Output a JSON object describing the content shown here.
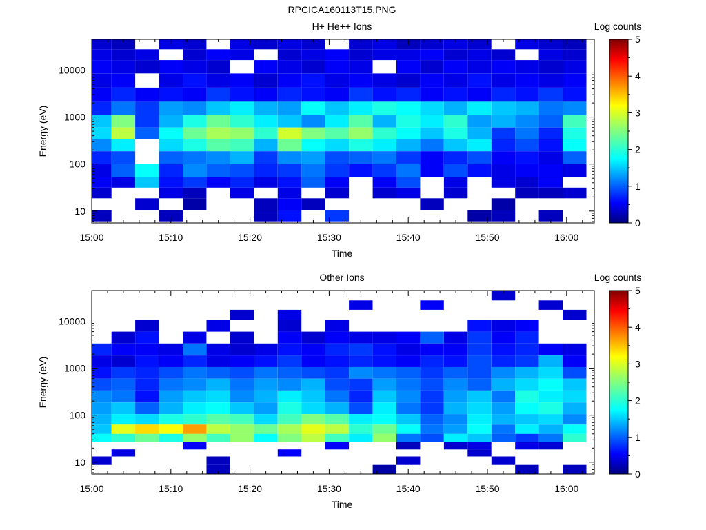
{
  "figure_title": "RPCICA160113T15.PNG",
  "chart_data": [
    {
      "type": "heatmap",
      "title": "H+ He++ Ions",
      "xlabel": "Time",
      "ylabel": "Energy (eV)",
      "x_tick_labels": [
        "15:00",
        "15:10",
        "15:20",
        "15:30",
        "15:40",
        "15:50",
        "16:00"
      ],
      "y_tick_labels": [
        "10",
        "100",
        "1000",
        "10000"
      ],
      "ylim": [
        5.6,
        45000
      ],
      "y_scale": "log",
      "colorbar": {
        "label": "Log counts",
        "ticks": [
          "0",
          "1",
          "2",
          "3",
          "4",
          "5"
        ],
        "range": [
          0,
          5
        ],
        "colormap": "jet"
      },
      "time_bins": [
        "15:01",
        "15:04",
        "15:07",
        "15:10",
        "15:13",
        "15:16",
        "15:19",
        "15:22",
        "15:25",
        "15:28",
        "15:31",
        "15:34",
        "15:37",
        "15:40",
        "15:43",
        "15:46",
        "15:49",
        "15:52",
        "15:55",
        "15:58",
        "16:01"
      ],
      "energy_rows": [
        {
          "energy_eV": 35000,
          "values": [
            0.4,
            0.3,
            null,
            0.5,
            0.4,
            null,
            0.5,
            0.4,
            0.5,
            0.4,
            null,
            0.4,
            0.5,
            0.3,
            0.4,
            0.5,
            0.4,
            null,
            0.5,
            0.4,
            0.3
          ]
        },
        {
          "energy_eV": 22000,
          "values": [
            0.5,
            0.4,
            0.5,
            null,
            0.4,
            0.6,
            0.5,
            null,
            0.4,
            0.5,
            0.6,
            0.4,
            0.5,
            0.5,
            0.6,
            0.4,
            0.5,
            0.4,
            null,
            0.5,
            0.4
          ]
        },
        {
          "energy_eV": 12000,
          "values": [
            0.6,
            0.5,
            0.4,
            0.6,
            0.5,
            0.4,
            null,
            0.6,
            0.5,
            0.4,
            0.6,
            0.5,
            null,
            0.6,
            0.4,
            0.6,
            0.5,
            0.6,
            0.5,
            0.4,
            0.5
          ]
        },
        {
          "energy_eV": 6000,
          "values": [
            0.5,
            0.6,
            null,
            0.5,
            0.7,
            0.5,
            0.6,
            0.4,
            0.6,
            0.7,
            0.5,
            0.6,
            0.5,
            0.4,
            0.6,
            0.5,
            0.7,
            0.5,
            0.6,
            0.5,
            0.6
          ]
        },
        {
          "energy_eV": 3000,
          "values": [
            0.6,
            0.8,
            0.6,
            0.7,
            0.6,
            0.9,
            0.7,
            0.6,
            0.8,
            0.7,
            0.6,
            0.9,
            0.7,
            0.8,
            0.6,
            0.7,
            0.6,
            0.8,
            0.7,
            0.9,
            0.7
          ]
        },
        {
          "energy_eV": 1500,
          "values": [
            0.8,
            1.2,
            0.9,
            1.4,
            1.3,
            1.6,
            1.8,
            1.5,
            1.4,
            1.9,
            1.6,
            1.8,
            2.0,
            1.9,
            1.7,
            1.5,
            1.8,
            1.6,
            1.5,
            1.2,
            1.3
          ]
        },
        {
          "energy_eV": 800,
          "values": [
            1.6,
            2.5,
            0.9,
            1.5,
            2.0,
            2.4,
            2.1,
            1.8,
            1.6,
            1.3,
            1.8,
            2.3,
            1.5,
            2.0,
            1.8,
            2.1,
            1.4,
            1.5,
            1.3,
            1.1,
            2.2
          ]
        },
        {
          "energy_eV": 450,
          "values": [
            1.7,
            2.8,
            1.1,
            1.9,
            2.4,
            2.7,
            2.6,
            2.1,
            2.9,
            2.5,
            2.3,
            2.6,
            2.1,
            1.9,
            1.6,
            2.0,
            1.5,
            0.9,
            1.2,
            0.8,
            2.0
          ]
        },
        {
          "energy_eV": 250,
          "values": [
            1.3,
            1.8,
            null,
            1.7,
            2.0,
            2.3,
            2.2,
            1.5,
            2.4,
            1.9,
            1.7,
            2.0,
            1.8,
            1.5,
            1.2,
            1.6,
            1.8,
            0.8,
            1.0,
            0.7,
            1.9
          ]
        },
        {
          "energy_eV": 140,
          "values": [
            0.8,
            1.0,
            null,
            1.1,
            1.2,
            1.3,
            1.5,
            0.9,
            1.3,
            1.4,
            1.0,
            1.1,
            1.2,
            0.9,
            0.6,
            0.8,
            1.0,
            0.6,
            0.7,
            0.5,
            1.1
          ]
        },
        {
          "energy_eV": 70,
          "values": [
            0.5,
            1.1,
            1.9,
            0.8,
            1.3,
            1.1,
            1.0,
            0.8,
            0.9,
            1.2,
            0.9,
            0.7,
            0.9,
            1.2,
            0.6,
            1.0,
            0.7,
            0.5,
            0.6,
            0.6,
            0.5
          ]
        },
        {
          "energy_eV": 40,
          "values": [
            0.6,
            0.5,
            1.6,
            0.7,
            0.9,
            0.6,
            0.8,
            0.5,
            0.7,
            1.1,
            0.6,
            null,
            0.6,
            1.0,
            null,
            0.5,
            null,
            0.5,
            0.4,
            0.6,
            null
          ]
        },
        {
          "energy_eV": 25,
          "values": [
            0.4,
            null,
            null,
            0.5,
            0.3,
            null,
            0.5,
            null,
            0.5,
            null,
            0.4,
            null,
            0.4,
            0.5,
            null,
            0.4,
            null,
            null,
            0.3,
            0.3,
            0.4
          ]
        },
        {
          "energy_eV": 14,
          "values": [
            null,
            null,
            0.4,
            null,
            0.2,
            null,
            null,
            0.3,
            0.6,
            0.3,
            null,
            null,
            null,
            null,
            0.3,
            null,
            null,
            0.2,
            null,
            null,
            null
          ]
        },
        {
          "energy_eV": 8,
          "values": [
            0.3,
            null,
            null,
            0.3,
            null,
            null,
            null,
            0.3,
            0.7,
            null,
            0.9,
            null,
            null,
            null,
            null,
            null,
            0.2,
            0.3,
            null,
            0.3,
            null
          ]
        }
      ]
    },
    {
      "type": "heatmap",
      "title": "Other Ions",
      "xlabel": "Time",
      "ylabel": "Energy (eV)",
      "x_tick_labels": [
        "15:00",
        "15:10",
        "15:20",
        "15:30",
        "15:40",
        "15:50",
        "16:00"
      ],
      "y_tick_labels": [
        "10",
        "100",
        "1000",
        "10000"
      ],
      "ylim": [
        5.6,
        45000
      ],
      "y_scale": "log",
      "colorbar": {
        "label": "Log counts",
        "ticks": [
          "0",
          "1",
          "2",
          "3",
          "4",
          "5"
        ],
        "range": [
          0,
          5
        ],
        "colormap": "jet"
      },
      "time_bins": [
        "15:01",
        "15:04",
        "15:07",
        "15:10",
        "15:13",
        "15:16",
        "15:19",
        "15:22",
        "15:25",
        "15:28",
        "15:31",
        "15:34",
        "15:37",
        "15:40",
        "15:43",
        "15:46",
        "15:49",
        "15:52",
        "15:55",
        "15:58",
        "16:01"
      ],
      "energy_rows": [
        {
          "energy_eV": 35000,
          "values": [
            null,
            null,
            null,
            null,
            null,
            null,
            null,
            null,
            null,
            null,
            null,
            null,
            null,
            null,
            null,
            null,
            null,
            0.4,
            null,
            null,
            null
          ]
        },
        {
          "energy_eV": 22000,
          "values": [
            null,
            null,
            null,
            null,
            null,
            null,
            null,
            null,
            null,
            null,
            null,
            0.5,
            null,
            null,
            0.6,
            null,
            null,
            null,
            null,
            0.4,
            null
          ]
        },
        {
          "energy_eV": 14000,
          "values": [
            null,
            null,
            null,
            null,
            null,
            null,
            0.4,
            null,
            0.5,
            null,
            null,
            null,
            null,
            null,
            null,
            null,
            null,
            null,
            null,
            null,
            0.4
          ]
        },
        {
          "energy_eV": 8000,
          "values": [
            null,
            null,
            0.4,
            null,
            null,
            0.5,
            null,
            null,
            0.4,
            null,
            0.5,
            null,
            null,
            null,
            null,
            null,
            0.7,
            0.5,
            0.6,
            null,
            null
          ]
        },
        {
          "energy_eV": 4500,
          "values": [
            null,
            0.4,
            0.7,
            null,
            0.5,
            null,
            0.4,
            null,
            0.6,
            0.4,
            0.6,
            0.5,
            0.5,
            0.6,
            1.1,
            0.5,
            0.9,
            0.6,
            0.8,
            null,
            null
          ]
        },
        {
          "energy_eV": 2500,
          "values": [
            0.8,
            0.6,
            0.6,
            0.5,
            1.2,
            0.5,
            0.4,
            0.5,
            0.7,
            0.6,
            0.8,
            0.9,
            0.7,
            0.5,
            0.6,
            0.6,
            0.9,
            0.7,
            0.8,
            0.6,
            0.5
          ]
        },
        {
          "energy_eV": 1400,
          "values": [
            0.5,
            0.4,
            0.7,
            0.6,
            0.8,
            0.5,
            0.6,
            0.7,
            0.9,
            0.6,
            0.7,
            0.8,
            0.7,
            0.6,
            0.8,
            0.7,
            1.0,
            0.8,
            0.9,
            1.5,
            0.6
          ]
        },
        {
          "energy_eV": 800,
          "values": [
            0.7,
            0.9,
            0.8,
            1.0,
            1.2,
            1.1,
            1.0,
            1.2,
            1.1,
            1.0,
            0.9,
            1.3,
            1.2,
            1.1,
            0.9,
            1.1,
            1.0,
            1.3,
            1.5,
            1.7,
            1.0
          ]
        },
        {
          "energy_eV": 450,
          "values": [
            1.0,
            1.1,
            0.8,
            1.2,
            1.3,
            1.5,
            1.2,
            1.4,
            1.3,
            1.5,
            1.0,
            0.9,
            1.4,
            1.2,
            1.0,
            1.3,
            1.1,
            1.5,
            1.7,
            1.9,
            1.6
          ]
        },
        {
          "energy_eV": 250,
          "values": [
            1.3,
            1.2,
            0.7,
            1.4,
            1.6,
            1.7,
            1.3,
            1.5,
            1.8,
            1.6,
            1.2,
            0.8,
            1.6,
            1.3,
            0.9,
            1.4,
            1.6,
            1.2,
            2.0,
            1.8,
            1.7
          ]
        },
        {
          "energy_eV": 140,
          "values": [
            1.4,
            1.6,
            1.1,
            1.5,
            1.8,
            1.9,
            1.6,
            1.4,
            2.0,
            1.7,
            1.5,
            1.0,
            1.8,
            1.2,
            0.9,
            1.5,
            1.7,
            1.4,
            1.9,
            2.0,
            1.5
          ]
        },
        {
          "energy_eV": 80,
          "values": [
            1.5,
            1.8,
            1.7,
            2.0,
            2.1,
            2.3,
            2.2,
            1.7,
            2.2,
            2.5,
            2.3,
            1.8,
            1.9,
            1.6,
            1.1,
            1.3,
            1.8,
            1.5,
            1.6,
            1.7,
            1.3
          ]
        },
        {
          "energy_eV": 50,
          "values": [
            1.6,
            3.0,
            3.3,
            3.1,
            3.6,
            2.8,
            2.6,
            2.4,
            2.7,
            3.0,
            2.8,
            2.1,
            2.4,
            1.9,
            1.2,
            1.4,
            1.9,
            1.2,
            1.8,
            1.5,
            1.9
          ]
        },
        {
          "energy_eV": 32,
          "values": [
            1.9,
            2.1,
            2.4,
            2.0,
            2.6,
            2.2,
            2.6,
            1.9,
            2.5,
            2.8,
            2.2,
            1.8,
            2.6,
            1.2,
            1.0,
            1.8,
            1.6,
            1.1,
            0.9,
            1.2,
            2.1
          ]
        },
        {
          "energy_eV": 22,
          "values": [
            null,
            null,
            null,
            null,
            0.6,
            null,
            null,
            null,
            null,
            null,
            0.6,
            null,
            null,
            0.3,
            null,
            0.4,
            0.5,
            null,
            0.5,
            0.4,
            null
          ]
        },
        {
          "energy_eV": 16,
          "values": [
            null,
            0.5,
            null,
            null,
            null,
            null,
            null,
            null,
            0.6,
            null,
            null,
            null,
            null,
            null,
            null,
            null,
            0.4,
            null,
            null,
            null,
            null
          ]
        },
        {
          "energy_eV": 11,
          "values": [
            0.4,
            null,
            null,
            null,
            null,
            0.3,
            null,
            null,
            null,
            null,
            null,
            null,
            null,
            0.4,
            null,
            null,
            null,
            0.4,
            null,
            null,
            null
          ]
        },
        {
          "energy_eV": 7,
          "values": [
            null,
            null,
            null,
            null,
            null,
            0.3,
            null,
            null,
            null,
            null,
            null,
            null,
            0.2,
            null,
            null,
            null,
            null,
            null,
            0.3,
            null,
            0.3
          ]
        }
      ]
    }
  ]
}
